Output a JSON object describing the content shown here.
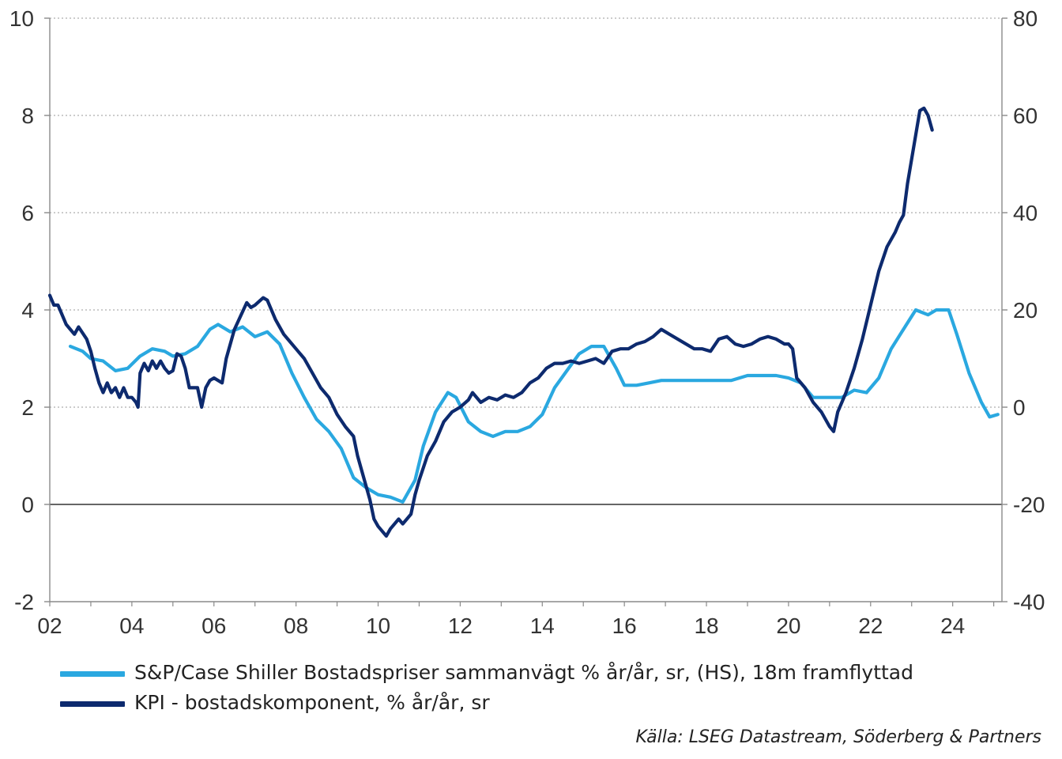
{
  "chart_data": {
    "type": "line",
    "x_ticks": [
      "02",
      "04",
      "06",
      "08",
      "10",
      "12",
      "14",
      "16",
      "18",
      "20",
      "22",
      "24"
    ],
    "y_left": {
      "lim": [
        -2,
        10
      ],
      "ticks": [
        "-2",
        "0",
        "2",
        "4",
        "6",
        "8",
        "10"
      ]
    },
    "y_right": {
      "lim": [
        -40,
        80
      ],
      "ticks": [
        "-40",
        "-20",
        "0",
        "20",
        "40",
        "60",
        "80"
      ]
    },
    "grid": "horizontal dotted",
    "legend_position": "bottom",
    "series": [
      {
        "name": "S&P/Case Shiller Bostadspriser sammanvägt % år/år, sr, (HS), 18m framflyttad",
        "axis": "right",
        "color": "#2aa8e0",
        "points": [
          [
            2002.5,
            12.5
          ],
          [
            2002.8,
            11.5
          ],
          [
            2003.0,
            10
          ],
          [
            2003.3,
            9.5
          ],
          [
            2003.6,
            7.5
          ],
          [
            2003.9,
            8
          ],
          [
            2004.2,
            10.5
          ],
          [
            2004.5,
            12
          ],
          [
            2004.8,
            11.5
          ],
          [
            2005.0,
            10.5
          ],
          [
            2005.3,
            11
          ],
          [
            2005.6,
            12.5
          ],
          [
            2005.9,
            16
          ],
          [
            2006.1,
            17
          ],
          [
            2006.4,
            15.5
          ],
          [
            2006.7,
            16.5
          ],
          [
            2007.0,
            14.5
          ],
          [
            2007.3,
            15.5
          ],
          [
            2007.6,
            13
          ],
          [
            2007.9,
            7
          ],
          [
            2008.2,
            2
          ],
          [
            2008.5,
            -2.5
          ],
          [
            2008.8,
            -5
          ],
          [
            2009.1,
            -8.5
          ],
          [
            2009.4,
            -14.5
          ],
          [
            2009.7,
            -16.5
          ],
          [
            2010.0,
            -18
          ],
          [
            2010.3,
            -18.5
          ],
          [
            2010.6,
            -19.5
          ],
          [
            2010.9,
            -15
          ],
          [
            2011.1,
            -8
          ],
          [
            2011.4,
            -1
          ],
          [
            2011.7,
            3
          ],
          [
            2011.9,
            2
          ],
          [
            2012.2,
            -3
          ],
          [
            2012.5,
            -5
          ],
          [
            2012.8,
            -6
          ],
          [
            2013.1,
            -5
          ],
          [
            2013.4,
            -5
          ],
          [
            2013.7,
            -4
          ],
          [
            2014.0,
            -1.5
          ],
          [
            2014.3,
            4
          ],
          [
            2014.6,
            7.5
          ],
          [
            2014.9,
            11
          ],
          [
            2015.2,
            12.5
          ],
          [
            2015.5,
            12.5
          ],
          [
            2015.8,
            8
          ],
          [
            2016.0,
            4.5
          ],
          [
            2016.3,
            4.5
          ],
          [
            2016.6,
            5
          ],
          [
            2016.9,
            5.5
          ],
          [
            2017.2,
            5.5
          ],
          [
            2017.5,
            5.5
          ],
          [
            2017.8,
            5.5
          ],
          [
            2018.2,
            5.5
          ],
          [
            2018.6,
            5.5
          ],
          [
            2019.0,
            6.5
          ],
          [
            2019.4,
            6.5
          ],
          [
            2019.7,
            6.5
          ],
          [
            2020.0,
            6
          ],
          [
            2020.3,
            5
          ],
          [
            2020.6,
            2
          ],
          [
            2021.0,
            2
          ],
          [
            2021.3,
            2
          ],
          [
            2021.6,
            3.5
          ],
          [
            2021.9,
            3
          ],
          [
            2022.2,
            6
          ],
          [
            2022.5,
            12
          ],
          [
            2022.8,
            16
          ],
          [
            2023.1,
            20
          ],
          [
            2023.4,
            19
          ],
          [
            2023.6,
            20
          ],
          [
            2023.9,
            20
          ],
          [
            2024.1,
            15
          ],
          [
            2024.4,
            7
          ],
          [
            2024.7,
            1
          ],
          [
            2024.9,
            -2
          ],
          [
            2025.1,
            -1.5
          ]
        ]
      },
      {
        "name": "KPI - bostadskomponent, % år/år, sr",
        "axis": "left",
        "color": "#0d2a6e",
        "points": [
          [
            2002.0,
            4.3
          ],
          [
            2002.1,
            4.1
          ],
          [
            2002.2,
            4.1
          ],
          [
            2002.4,
            3.7
          ],
          [
            2002.5,
            3.6
          ],
          [
            2002.6,
            3.5
          ],
          [
            2002.7,
            3.65
          ],
          [
            2002.9,
            3.4
          ],
          [
            2003.0,
            3.15
          ],
          [
            2003.1,
            2.8
          ],
          [
            2003.2,
            2.5
          ],
          [
            2003.3,
            2.3
          ],
          [
            2003.4,
            2.5
          ],
          [
            2003.5,
            2.3
          ],
          [
            2003.6,
            2.4
          ],
          [
            2003.7,
            2.2
          ],
          [
            2003.8,
            2.4
          ],
          [
            2003.9,
            2.2
          ],
          [
            2004.0,
            2.2
          ],
          [
            2004.1,
            2.1
          ],
          [
            2004.15,
            2.0
          ],
          [
            2004.2,
            2.7
          ],
          [
            2004.3,
            2.9
          ],
          [
            2004.4,
            2.75
          ],
          [
            2004.5,
            2.95
          ],
          [
            2004.6,
            2.8
          ],
          [
            2004.7,
            2.95
          ],
          [
            2004.8,
            2.8
          ],
          [
            2004.9,
            2.7
          ],
          [
            2005.0,
            2.75
          ],
          [
            2005.1,
            3.1
          ],
          [
            2005.2,
            3.05
          ],
          [
            2005.3,
            2.8
          ],
          [
            2005.4,
            2.4
          ],
          [
            2005.6,
            2.4
          ],
          [
            2005.7,
            2.0
          ],
          [
            2005.8,
            2.4
          ],
          [
            2005.9,
            2.55
          ],
          [
            2006.0,
            2.6
          ],
          [
            2006.2,
            2.5
          ],
          [
            2006.3,
            3.0
          ],
          [
            2006.5,
            3.6
          ],
          [
            2006.8,
            4.15
          ],
          [
            2006.9,
            4.05
          ],
          [
            2007.0,
            4.1
          ],
          [
            2007.2,
            4.25
          ],
          [
            2007.3,
            4.2
          ],
          [
            2007.5,
            3.8
          ],
          [
            2007.7,
            3.5
          ],
          [
            2007.8,
            3.4
          ],
          [
            2008.0,
            3.2
          ],
          [
            2008.2,
            3.0
          ],
          [
            2008.4,
            2.7
          ],
          [
            2008.6,
            2.4
          ],
          [
            2008.8,
            2.2
          ],
          [
            2009.0,
            1.85
          ],
          [
            2009.2,
            1.6
          ],
          [
            2009.4,
            1.4
          ],
          [
            2009.5,
            1.0
          ],
          [
            2009.7,
            0.4
          ],
          [
            2009.8,
            0.1
          ],
          [
            2009.9,
            -0.3
          ],
          [
            2010.0,
            -0.45
          ],
          [
            2010.2,
            -0.65
          ],
          [
            2010.3,
            -0.5
          ],
          [
            2010.5,
            -0.3
          ],
          [
            2010.6,
            -0.4
          ],
          [
            2010.7,
            -0.3
          ],
          [
            2010.8,
            -0.2
          ],
          [
            2010.9,
            0.2
          ],
          [
            2011.0,
            0.5
          ],
          [
            2011.2,
            1.0
          ],
          [
            2011.4,
            1.3
          ],
          [
            2011.6,
            1.7
          ],
          [
            2011.8,
            1.9
          ],
          [
            2012.0,
            2.0
          ],
          [
            2012.2,
            2.15
          ],
          [
            2012.3,
            2.3
          ],
          [
            2012.5,
            2.1
          ],
          [
            2012.7,
            2.2
          ],
          [
            2012.9,
            2.15
          ],
          [
            2013.1,
            2.25
          ],
          [
            2013.3,
            2.2
          ],
          [
            2013.5,
            2.3
          ],
          [
            2013.7,
            2.5
          ],
          [
            2013.9,
            2.6
          ],
          [
            2014.1,
            2.8
          ],
          [
            2014.3,
            2.9
          ],
          [
            2014.5,
            2.9
          ],
          [
            2014.7,
            2.95
          ],
          [
            2014.9,
            2.9
          ],
          [
            2015.1,
            2.95
          ],
          [
            2015.3,
            3.0
          ],
          [
            2015.5,
            2.9
          ],
          [
            2015.7,
            3.15
          ],
          [
            2015.9,
            3.2
          ],
          [
            2016.1,
            3.2
          ],
          [
            2016.3,
            3.3
          ],
          [
            2016.5,
            3.35
          ],
          [
            2016.7,
            3.45
          ],
          [
            2016.9,
            3.6
          ],
          [
            2017.1,
            3.5
          ],
          [
            2017.3,
            3.4
          ],
          [
            2017.5,
            3.3
          ],
          [
            2017.7,
            3.2
          ],
          [
            2017.9,
            3.2
          ],
          [
            2018.1,
            3.15
          ],
          [
            2018.3,
            3.4
          ],
          [
            2018.5,
            3.45
          ],
          [
            2018.7,
            3.3
          ],
          [
            2018.9,
            3.25
          ],
          [
            2019.1,
            3.3
          ],
          [
            2019.3,
            3.4
          ],
          [
            2019.5,
            3.45
          ],
          [
            2019.7,
            3.4
          ],
          [
            2019.9,
            3.3
          ],
          [
            2020.0,
            3.3
          ],
          [
            2020.1,
            3.2
          ],
          [
            2020.2,
            2.6
          ],
          [
            2020.4,
            2.4
          ],
          [
            2020.6,
            2.1
          ],
          [
            2020.8,
            1.9
          ],
          [
            2021.0,
            1.6
          ],
          [
            2021.1,
            1.5
          ],
          [
            2021.2,
            1.9
          ],
          [
            2021.4,
            2.3
          ],
          [
            2021.6,
            2.8
          ],
          [
            2021.8,
            3.4
          ],
          [
            2022.0,
            4.1
          ],
          [
            2022.2,
            4.8
          ],
          [
            2022.4,
            5.3
          ],
          [
            2022.6,
            5.6
          ],
          [
            2022.7,
            5.8
          ],
          [
            2022.8,
            5.95
          ],
          [
            2022.9,
            6.6
          ],
          [
            2023.0,
            7.1
          ],
          [
            2023.1,
            7.6
          ],
          [
            2023.2,
            8.1
          ],
          [
            2023.3,
            8.15
          ],
          [
            2023.4,
            8.0
          ],
          [
            2023.5,
            7.7
          ]
        ]
      }
    ]
  },
  "source": "Källa: LSEG Datastream, Söderberg & Partners"
}
